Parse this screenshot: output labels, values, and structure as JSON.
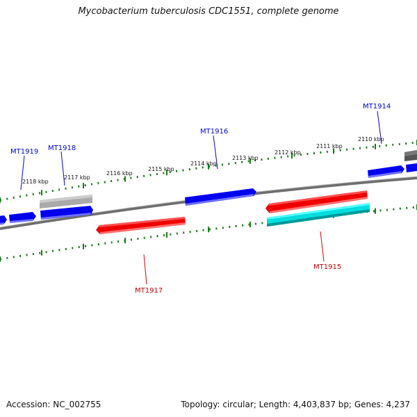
{
  "title": "Mycobacterium tuberculosis CDC1551, complete genome",
  "footer": {
    "accession": "Accession: NC_002755",
    "topology": "Topology: circular; Length: 4,403,837 bp; Genes: 4,237"
  },
  "colors": {
    "backbone": "#808080",
    "tick": "#1a7a1a",
    "forward_gene": "#0000ee",
    "reverse_gene": "#ee0000",
    "highlight_gene": "#00dddd",
    "other_gene": "#aaaaaa",
    "forward_label": "#0000cc",
    "reverse_label": "#cc0000"
  },
  "kbp_ticks": [
    "2110 kbp",
    "2111 kbp",
    "2112 kbp",
    "2113 kbp",
    "2114 kbp",
    "2115 kbp",
    "2116 kbp",
    "2117 kbp",
    "2118 kbp"
  ],
  "gene_labels": [
    {
      "name": "MT1914",
      "strand": "forward"
    },
    {
      "name": "MT1916",
      "strand": "forward"
    },
    {
      "name": "MT1918",
      "strand": "forward"
    },
    {
      "name": "MT1919",
      "strand": "forward"
    },
    {
      "name": "MT1915",
      "strand": "reverse"
    },
    {
      "name": "MT1917",
      "strand": "reverse"
    }
  ]
}
